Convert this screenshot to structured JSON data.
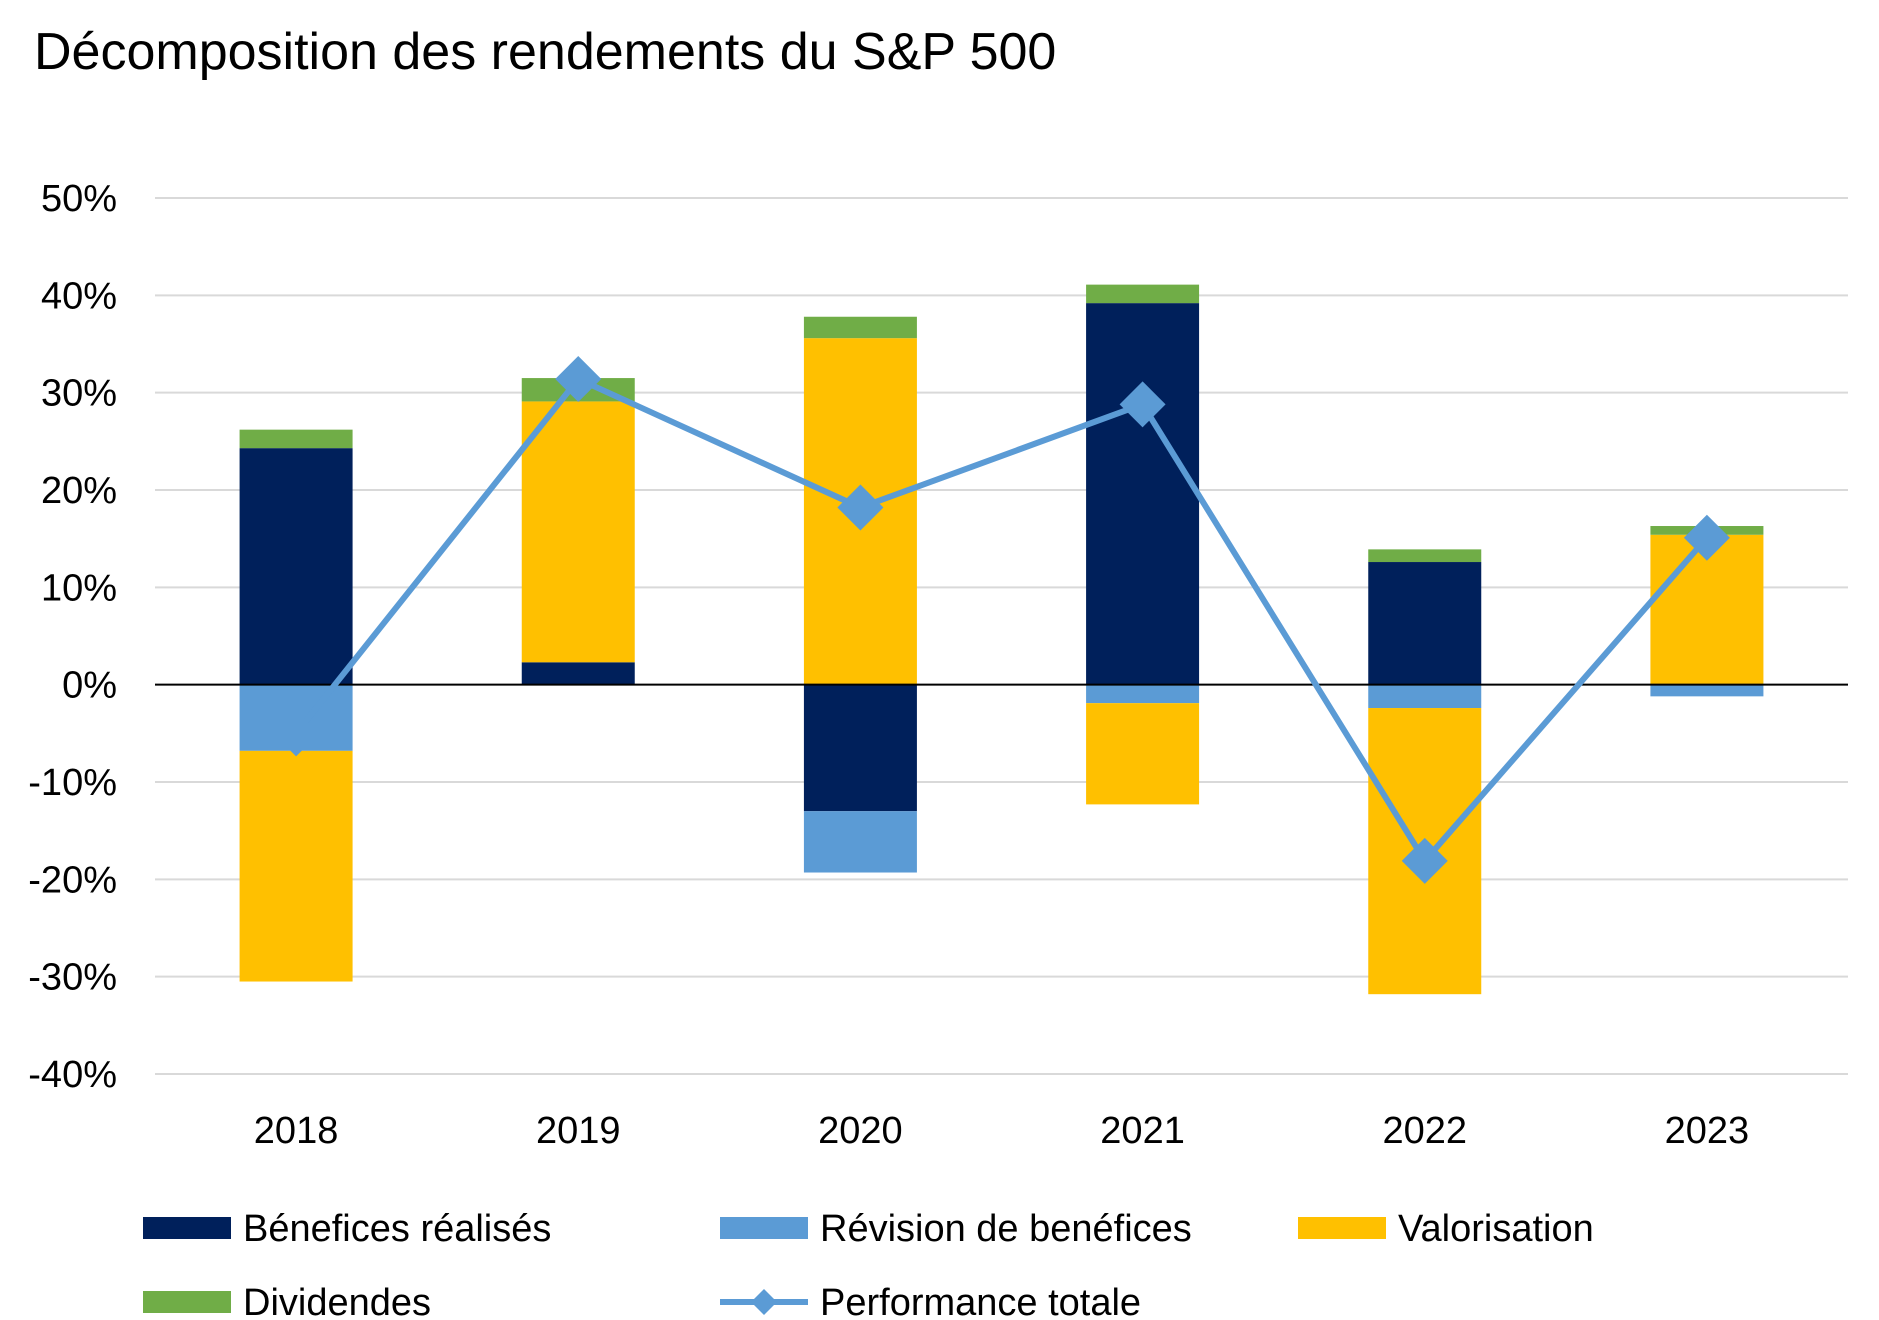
{
  "chart_data": {
    "type": "bar",
    "stacked": true,
    "title": "Décomposition des rendements du S&P 500",
    "xlabel": "",
    "ylabel": "",
    "ylim": [
      -40,
      50
    ],
    "yticks": [
      50,
      40,
      30,
      20,
      10,
      0,
      -10,
      -20,
      -30,
      -40
    ],
    "ytick_labels": [
      "50%",
      "40%",
      "30%",
      "20%",
      "10%",
      "0%",
      "-10%",
      "-20%",
      "-30%",
      "-40%"
    ],
    "grid": true,
    "legend": "bottom",
    "categories": [
      "2018",
      "2019",
      "2020",
      "2021",
      "2022",
      "2023"
    ],
    "series": [
      {
        "name": "Bénefices réalisés",
        "kind": "bar",
        "color": "#00205B",
        "values": [
          24.3,
          2.3,
          -13.0,
          39.2,
          12.6,
          0.0
        ]
      },
      {
        "name": "Révision de benéfices",
        "kind": "bar",
        "color": "#5B9BD5",
        "values": [
          -6.8,
          0.0,
          -6.3,
          -1.9,
          -2.4,
          -1.2
        ]
      },
      {
        "name": "Valorisation",
        "kind": "bar",
        "color": "#FFC000",
        "values": [
          -23.7,
          26.8,
          35.6,
          -10.4,
          -29.4,
          15.4
        ]
      },
      {
        "name": "Dividendes",
        "kind": "bar",
        "color": "#70AD47",
        "values": [
          1.9,
          2.4,
          2.2,
          1.9,
          1.3,
          0.9
        ]
      },
      {
        "name": "Performance totale",
        "kind": "line",
        "color": "#5B9BD5",
        "values": [
          -5.0,
          31.4,
          18.2,
          28.8,
          -18.1,
          15.1
        ]
      }
    ]
  }
}
